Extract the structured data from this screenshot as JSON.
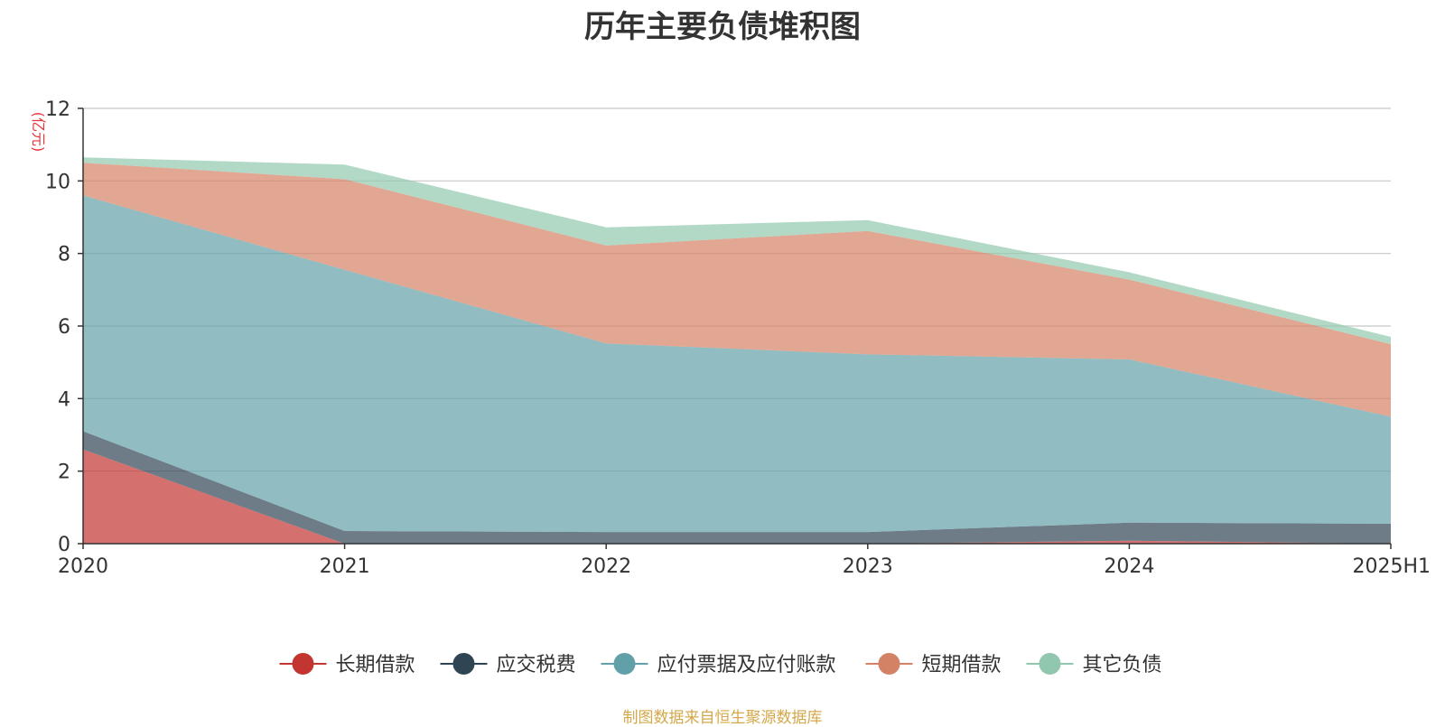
{
  "source_note": "制图数据来自恒生聚源数据库",
  "chart_data": {
    "type": "area",
    "title": "历年主要负债堆积图",
    "ylabel": "(亿元)",
    "ylabel_color": "#e8333a",
    "x": [
      "2020",
      "2021",
      "2022",
      "2023",
      "2024",
      "2025H1"
    ],
    "ylim": [
      0,
      12
    ],
    "yticks": [
      0,
      2,
      4,
      6,
      8,
      10,
      12
    ],
    "ytick_labels": [
      "0",
      "2",
      "4",
      "6",
      "8",
      "10",
      "12"
    ],
    "grid": true,
    "legend_position": "bottom",
    "stacked": true,
    "series": [
      {
        "name": "长期借款",
        "color": "#c23531",
        "values": [
          2.6,
          0.0,
          0.0,
          0.0,
          0.08,
          0.0
        ]
      },
      {
        "name": "应交税费",
        "color": "#2f4554",
        "values": [
          0.5,
          0.35,
          0.32,
          0.32,
          0.5,
          0.55
        ]
      },
      {
        "name": "应付票据及应付账款",
        "color": "#61a0a8",
        "values": [
          6.5,
          7.2,
          5.2,
          4.9,
          4.5,
          2.95
        ]
      },
      {
        "name": "短期借款",
        "color": "#d48265",
        "values": [
          0.9,
          2.5,
          2.7,
          3.4,
          2.2,
          2.0
        ]
      },
      {
        "name": "其它负债",
        "color": "#91c7ae",
        "values": [
          0.15,
          0.4,
          0.5,
          0.3,
          0.2,
          0.2
        ]
      }
    ]
  }
}
